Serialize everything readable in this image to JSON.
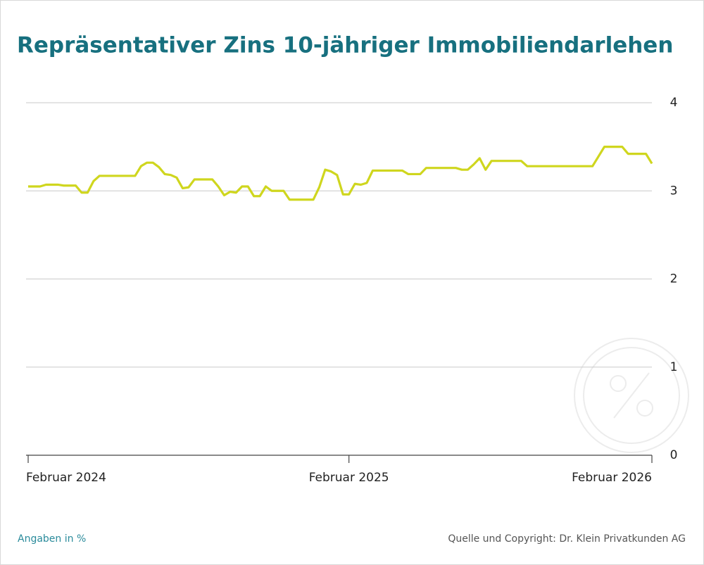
{
  "chart_data": {
    "type": "line",
    "title": "Repräsentativer Zins 10-jähriger Immobiliendarlehen",
    "note": "Angaben in %",
    "source": "Quelle und Copyright: Dr. Klein Privatkunden AG",
    "categories": [
      "Februar 2024",
      null,
      null,
      null,
      null,
      null,
      null,
      null,
      null,
      null,
      null,
      null,
      null,
      null,
      null,
      null,
      null,
      null,
      null,
      null,
      null,
      null,
      null,
      null,
      null,
      null,
      null,
      null,
      null,
      null,
      null,
      null,
      null,
      null,
      null,
      null,
      null,
      null,
      null,
      null,
      null,
      null,
      null,
      null,
      null,
      null,
      null,
      null,
      null,
      null,
      null,
      null,
      null,
      null,
      "Februar 2025",
      null,
      null,
      null,
      null,
      null,
      null,
      null,
      null,
      null,
      null,
      null,
      null,
      null,
      null,
      null,
      null,
      null,
      null,
      null,
      null,
      null,
      null,
      null,
      null,
      null,
      null,
      null,
      null,
      null,
      null,
      null,
      null,
      null,
      null,
      null,
      null,
      null,
      null,
      null,
      null,
      null,
      null,
      null,
      null,
      null,
      null,
      null,
      null,
      null,
      null,
      "Februar 2026"
    ],
    "series": [
      {
        "name": "Zins",
        "color": "#cfd61e",
        "values": [
          3.05,
          3.05,
          3.05,
          3.07,
          3.07,
          3.07,
          3.06,
          3.06,
          3.06,
          2.98,
          2.98,
          3.11,
          3.17,
          3.17,
          3.17,
          3.17,
          3.17,
          3.17,
          3.17,
          3.28,
          3.32,
          3.32,
          3.27,
          3.19,
          3.18,
          3.15,
          3.03,
          3.04,
          3.13,
          3.13,
          3.13,
          3.13,
          3.05,
          2.95,
          2.99,
          2.98,
          3.05,
          3.05,
          2.94,
          2.94,
          3.05,
          3,
          3,
          3,
          2.9,
          2.9,
          2.9,
          2.9,
          2.9,
          3.04,
          3.24,
          3.22,
          3.18,
          2.96,
          2.96,
          3.08,
          3.07,
          3.09,
          3.23,
          3.23,
          3.23,
          3.23,
          3.23,
          3.23,
          3.19,
          3.19,
          3.19,
          3.26,
          3.26,
          3.26,
          3.26,
          3.26,
          3.26,
          3.24,
          3.24,
          3.3,
          3.37,
          3.24,
          3.34,
          3.34,
          3.34,
          3.34,
          3.34,
          3.34,
          3.28,
          3.28,
          3.28,
          3.28,
          3.28,
          3.28,
          3.28,
          3.28,
          3.28,
          3.28,
          3.28,
          3.28,
          3.39,
          3.5,
          3.5,
          3.5,
          3.5,
          3.42,
          3.42,
          3.42,
          3.42,
          3.31
        ]
      }
    ],
    "ylim": [
      0,
      4
    ],
    "yticks": [
      0,
      1,
      2,
      3,
      4
    ],
    "grid": true
  }
}
